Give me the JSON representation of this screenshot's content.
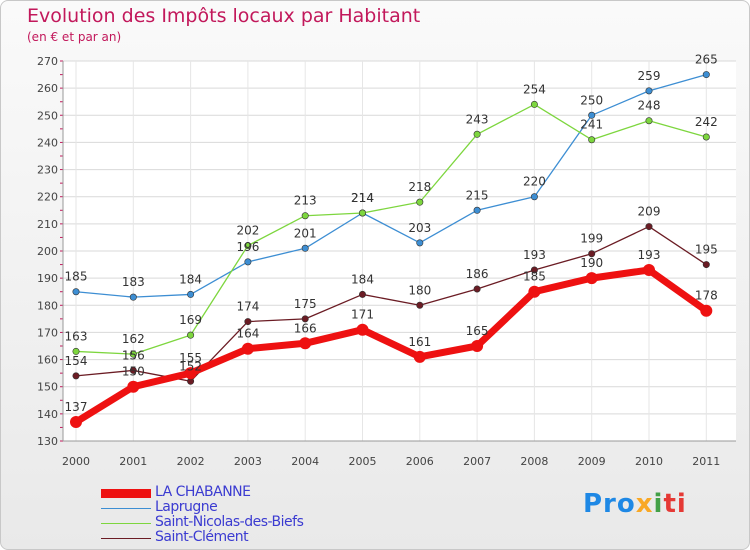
{
  "chart_data": {
    "type": "line",
    "title": "Evolution des Impôts locaux par Habitant",
    "subtitle": "(en € et par an)",
    "x": [
      "2000",
      "2001",
      "2002",
      "2003",
      "2004",
      "2005",
      "2006",
      "2007",
      "2008",
      "2009",
      "2010",
      "2011"
    ],
    "ylim": [
      130,
      270
    ],
    "yticks": [
      130,
      140,
      150,
      160,
      170,
      180,
      190,
      200,
      210,
      220,
      230,
      240,
      250,
      260,
      270
    ],
    "grid": true,
    "legend_position": "bottom-left",
    "series": [
      {
        "name": "LA CHABANNE",
        "color": "#ee1111",
        "values": [
          137,
          150,
          155,
          164,
          166,
          171,
          161,
          165,
          185,
          190,
          193,
          178
        ]
      },
      {
        "name": "Laprugne",
        "color": "#3d8ed3",
        "values": [
          185,
          183,
          184,
          196,
          201,
          214,
          203,
          215,
          220,
          250,
          259,
          265
        ]
      },
      {
        "name": "Saint-Nicolas-des-Biefs",
        "color": "#7dd63e",
        "values": [
          163,
          162,
          169,
          202,
          213,
          214,
          218,
          243,
          254,
          241,
          248,
          242
        ]
      },
      {
        "name": "Saint-Clément",
        "color": "#6b1c24",
        "values": [
          154,
          156,
          152,
          174,
          175,
          184,
          180,
          186,
          193,
          199,
          209,
          195
        ]
      }
    ]
  },
  "logo": {
    "text": "Proxiti",
    "parts": [
      "Pro",
      "x",
      "i",
      "ti"
    ]
  }
}
